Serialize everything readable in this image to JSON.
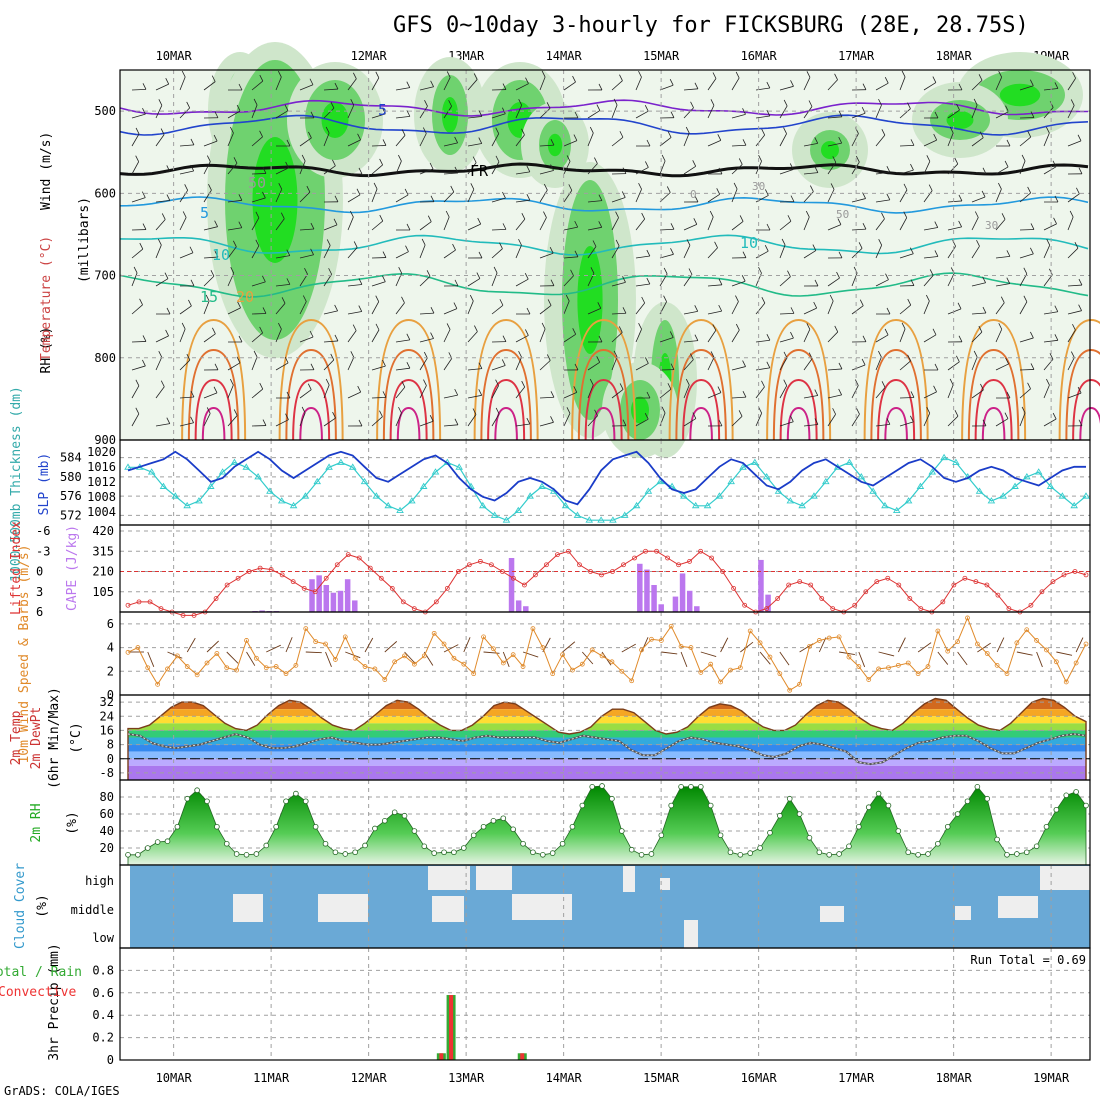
{
  "title": "GFS 0~10day 3-hourly for FICKSBURG (28E, 28.75S)",
  "footer": "GrADS: COLA/IGES",
  "days": [
    "10MAR",
    "11MAR",
    "12MAR",
    "13MAR",
    "14MAR",
    "15MAR",
    "16MAR",
    "17MAR",
    "18MAR",
    "19MAR"
  ],
  "colors": {
    "axis": "#000000",
    "grid": "#a0a0a0",
    "rh_green": "#22cc22",
    "temp_line": "#cc3333",
    "cloud_bg": "#6aa9d6"
  },
  "chart_data": [
    {
      "type": "heatmap",
      "panel": "upper-air",
      "ylabel_parts": [
        "RH (%)",
        "Temperature (°C)",
        "Wind (m/s)"
      ],
      "yunit_label": "(millibars)",
      "yticks": [
        500,
        600,
        700,
        800,
        900
      ],
      "ylim": [
        450,
        900
      ],
      "contour_labels": [
        "5",
        "FR",
        "50",
        "5",
        "10",
        "15",
        "20",
        "0",
        "30",
        "50",
        "10",
        "30"
      ]
    },
    {
      "type": "line",
      "panel": "thickness-slp",
      "ylabel_left": "1000-500mb Thickness (dm)",
      "ylabel_right": "SLP (mb)",
      "yticks_left": [
        572,
        576,
        580,
        584
      ],
      "yticks_right": [
        1004,
        1008,
        1012,
        1016,
        1020
      ],
      "series": [
        {
          "name": "Thickness",
          "color": "#33cccc",
          "values": [
            582,
            582,
            581,
            578,
            576,
            574,
            575,
            578,
            581,
            583,
            582,
            580,
            577,
            575,
            574,
            576,
            579,
            582,
            583,
            582,
            579,
            576,
            574,
            573,
            575,
            578,
            581,
            583,
            582,
            578,
            574,
            572,
            571,
            573,
            576,
            578,
            577,
            574,
            572,
            571,
            571,
            571,
            572,
            574,
            577,
            579,
            578,
            576,
            574,
            574,
            576,
            579,
            582,
            583,
            580,
            577,
            575,
            574,
            576,
            579,
            582,
            583,
            580,
            577,
            574,
            573,
            575,
            578,
            581,
            584,
            583,
            580,
            577,
            575,
            576,
            578,
            580,
            581,
            578,
            576,
            574,
            576
          ]
        },
        {
          "name": "SLP",
          "color": "#1a3cc8",
          "values": [
            1015,
            1016,
            1017,
            1018,
            1020,
            1018,
            1015,
            1012,
            1013,
            1016,
            1018,
            1020,
            1018,
            1015,
            1013,
            1015,
            1017,
            1019,
            1020,
            1019,
            1016,
            1013,
            1012,
            1014,
            1016,
            1018,
            1019,
            1017,
            1013,
            1010,
            1008,
            1007,
            1009,
            1012,
            1013,
            1012,
            1010,
            1007,
            1006,
            1010,
            1015,
            1018,
            1019,
            1020,
            1017,
            1013,
            1010,
            1009,
            1010,
            1013,
            1016,
            1018,
            1017,
            1014,
            1011,
            1010,
            1012,
            1015,
            1017,
            1018,
            1016,
            1014,
            1012,
            1011,
            1013,
            1015,
            1017,
            1018,
            1016,
            1013,
            1012,
            1013,
            1015,
            1016,
            1015,
            1013,
            1012,
            1011,
            1013,
            1015,
            1016,
            1016
          ]
        }
      ]
    },
    {
      "type": "bar",
      "panel": "cape-li",
      "ylabel_left": "Lifted Index",
      "ylabel_right": "CAPE (J/kg)",
      "yticks_left": [
        -6,
        -3,
        0,
        3,
        6
      ],
      "yticks_right": [
        105,
        210,
        315,
        420
      ],
      "series": [
        {
          "name": "CAPE",
          "color": "#bb77ee",
          "values": [
            0,
            0,
            0,
            0,
            0,
            0,
            0,
            0,
            0,
            0,
            0,
            0,
            0,
            0,
            0,
            0,
            0,
            0,
            5,
            8,
            5,
            5,
            0,
            0,
            0,
            0,
            170,
            190,
            140,
            100,
            110,
            170,
            60,
            0,
            0,
            0,
            0,
            0,
            0,
            0,
            0,
            0,
            0,
            0,
            0,
            0,
            0,
            0,
            0,
            0,
            0,
            0,
            0,
            0,
            280,
            60,
            30,
            0,
            0,
            0,
            0,
            0,
            0,
            0,
            0,
            0,
            0,
            0,
            0,
            0,
            0,
            0,
            250,
            220,
            140,
            40,
            0,
            80,
            200,
            110,
            30,
            0,
            0,
            0,
            0,
            0,
            0,
            0,
            0,
            270,
            90,
            0,
            0,
            0,
            0,
            0,
            0,
            0,
            0,
            0,
            0,
            0,
            0,
            0,
            0,
            0,
            0,
            0,
            0,
            0,
            0,
            0,
            0,
            0,
            0,
            0,
            0,
            0,
            0,
            0,
            0,
            0,
            0,
            0,
            0,
            0,
            0,
            0,
            0,
            0,
            0,
            0,
            0,
            0,
            0
          ]
        },
        {
          "name": "Lifted Index",
          "color": "#dd3333",
          "values": [
            5,
            4.5,
            4.5,
            5.5,
            6,
            6.5,
            6.5,
            6,
            4,
            2,
            1,
            0,
            -0.5,
            -0.3,
            0.5,
            1.5,
            2.5,
            3,
            1,
            -1,
            -2.5,
            -2,
            -0.5,
            1,
            2.5,
            4.5,
            5.5,
            6,
            4.5,
            2.5,
            0,
            -1,
            -1.5,
            -1,
            0,
            1,
            2,
            0.5,
            -1,
            -2.5,
            -3,
            -1,
            0,
            0.5,
            0,
            -1,
            -2,
            -3,
            -3,
            -2,
            -1,
            -1.5,
            -3,
            -2,
            0,
            2.5,
            5,
            6,
            5.5,
            4,
            2,
            1.5,
            2,
            4,
            5.5,
            6,
            5,
            3,
            1.5,
            1,
            2,
            4,
            5.5,
            6,
            4.5,
            2,
            1,
            1.5,
            2,
            3.5,
            5.5,
            6,
            5,
            3,
            1.5,
            0.5,
            0,
            0.5
          ]
        }
      ]
    },
    {
      "type": "line",
      "panel": "wind10m",
      "ylabel": "10m Wind Speed & Barbs (m/s)",
      "yticks": [
        0,
        2,
        4,
        6
      ],
      "ylim": [
        0,
        7
      ],
      "series": [
        {
          "name": "Speed",
          "color": "#e08a2a",
          "values": [
            3.6,
            4,
            2.3,
            0.9,
            2.2,
            3.3,
            2.4,
            1.7,
            2.7,
            3.5,
            2.3,
            2.1,
            4.6,
            3.1,
            2.3,
            2.4,
            1.8,
            2.5,
            5.6,
            4.5,
            4.3,
            3,
            4.9,
            3.1,
            2.4,
            2.2,
            1.3,
            2.8,
            3.3,
            2.6,
            3.3,
            5.2,
            4.3,
            3.1,
            2.6,
            1.8,
            4.9,
            3.9,
            2.7,
            3.4,
            2.4,
            5.6,
            4,
            1.8,
            3.4,
            2.1,
            2.6,
            3.8,
            3.3,
            2.8,
            2,
            1.2,
            3.8,
            4.7,
            4.6,
            5.8,
            4.1,
            4,
            1.9,
            2.6,
            1.1,
            2.1,
            2.3,
            5.4,
            4.4,
            3.2,
            1.8,
            0.4,
            0.9,
            4.1,
            4.6,
            4.8,
            4.9,
            3.2,
            2.4,
            1.3,
            2.2,
            2.3,
            2.5,
            2.7,
            1.8,
            2.4,
            5.4,
            3.7,
            4.5,
            6.5,
            4.3,
            3.5,
            2.5,
            1.8,
            4.4,
            5.5,
            4.6,
            3.8,
            2.8,
            1.1,
            2.7,
            4.3
          ]
        }
      ]
    },
    {
      "type": "area",
      "panel": "temp2m",
      "ylabel": "2m Temp 2m DewPt (6hr Min/Max) (°C)",
      "yticks": [
        -8,
        0,
        8,
        16,
        24,
        32
      ],
      "ylim": [
        -12,
        36
      ],
      "series": [
        {
          "name": "2m Temp",
          "color": "#7a3d1a",
          "values": [
            17,
            17,
            19,
            24,
            29,
            32,
            32,
            30,
            25,
            20,
            17,
            16,
            19,
            25,
            30,
            33,
            32,
            28,
            23,
            19,
            17,
            16,
            20,
            25,
            30,
            33,
            32,
            28,
            23,
            19,
            16,
            16,
            19,
            24,
            30,
            32,
            31,
            27,
            23,
            19,
            15,
            14,
            15,
            18,
            24,
            28,
            28,
            26,
            21,
            16,
            14,
            15,
            18,
            24,
            29,
            31,
            30,
            27,
            22,
            18,
            16,
            16,
            19,
            25,
            30,
            33,
            32,
            28,
            23,
            19,
            17,
            16,
            20,
            26,
            31,
            34,
            33,
            28,
            23,
            19,
            17,
            16,
            20,
            26,
            32,
            34,
            33,
            29,
            24,
            21
          ]
        },
        {
          "name": "2m DewPt",
          "color": "#777777",
          "values": [
            14,
            13,
            9,
            7,
            6,
            7,
            8,
            10,
            12,
            14,
            12,
            8,
            6,
            6,
            7,
            9,
            11,
            12,
            10,
            9,
            8,
            8,
            9,
            10,
            11,
            12,
            12,
            11,
            10,
            12,
            13,
            12,
            12,
            12,
            12,
            10,
            9,
            11,
            13,
            12,
            11,
            10,
            5,
            2,
            2,
            6,
            10,
            12,
            11,
            9,
            8,
            7,
            5,
            2,
            1,
            3,
            7,
            9,
            8,
            6,
            4,
            -2,
            -3,
            -2,
            2,
            6,
            9,
            10,
            12,
            13,
            13,
            10,
            6,
            3,
            3,
            6,
            9,
            11,
            13,
            14,
            13
          ]
        }
      ]
    },
    {
      "type": "area",
      "panel": "rh2m",
      "ylabel": "2m RH (%)",
      "yticks": [
        20,
        40,
        60,
        80
      ],
      "ylim": [
        0,
        100
      ],
      "series": [
        {
          "name": "2m RH",
          "values": [
            12,
            12,
            20,
            27,
            28,
            45,
            78,
            88,
            75,
            45,
            25,
            13,
            12,
            13,
            23,
            45,
            75,
            84,
            75,
            45,
            25,
            15,
            13,
            15,
            23,
            43,
            52,
            62,
            58,
            40,
            22,
            14,
            15,
            15,
            20,
            35,
            45,
            52,
            55,
            42,
            25,
            15,
            12,
            14,
            25,
            45,
            70,
            92,
            93,
            78,
            40,
            18,
            12,
            13,
            35,
            70,
            92,
            92,
            92,
            70,
            35,
            15,
            12,
            14,
            20,
            38,
            58,
            78,
            60,
            32,
            15,
            12,
            13,
            22,
            45,
            68,
            84,
            70,
            40,
            15,
            12,
            13,
            25,
            45,
            60,
            75,
            92,
            78,
            30,
            12,
            13,
            15,
            22,
            45,
            65,
            82,
            86,
            70
          ]
        }
      ]
    },
    {
      "type": "heatmap",
      "panel": "cloud",
      "ylabel": "Cloud Cover (%)",
      "yticks": [
        "high",
        "middle",
        "low"
      ]
    },
    {
      "type": "bar",
      "panel": "precip",
      "ylabel_parts": [
        "3hr Precip (mm)",
        "Total / Rain",
        "Convective"
      ],
      "yticks": [
        0,
        0.2,
        0.4,
        0.6,
        0.8
      ],
      "ylim": [
        0,
        1
      ],
      "annotation": "Run Total = 0.69",
      "series": [
        {
          "name": "Total",
          "values": [
            {
              "day": 2.72,
              "v": 0.06
            },
            {
              "day": 2.82,
              "v": 0.58
            },
            {
              "day": 3.55,
              "v": 0.06
            }
          ]
        }
      ]
    }
  ]
}
